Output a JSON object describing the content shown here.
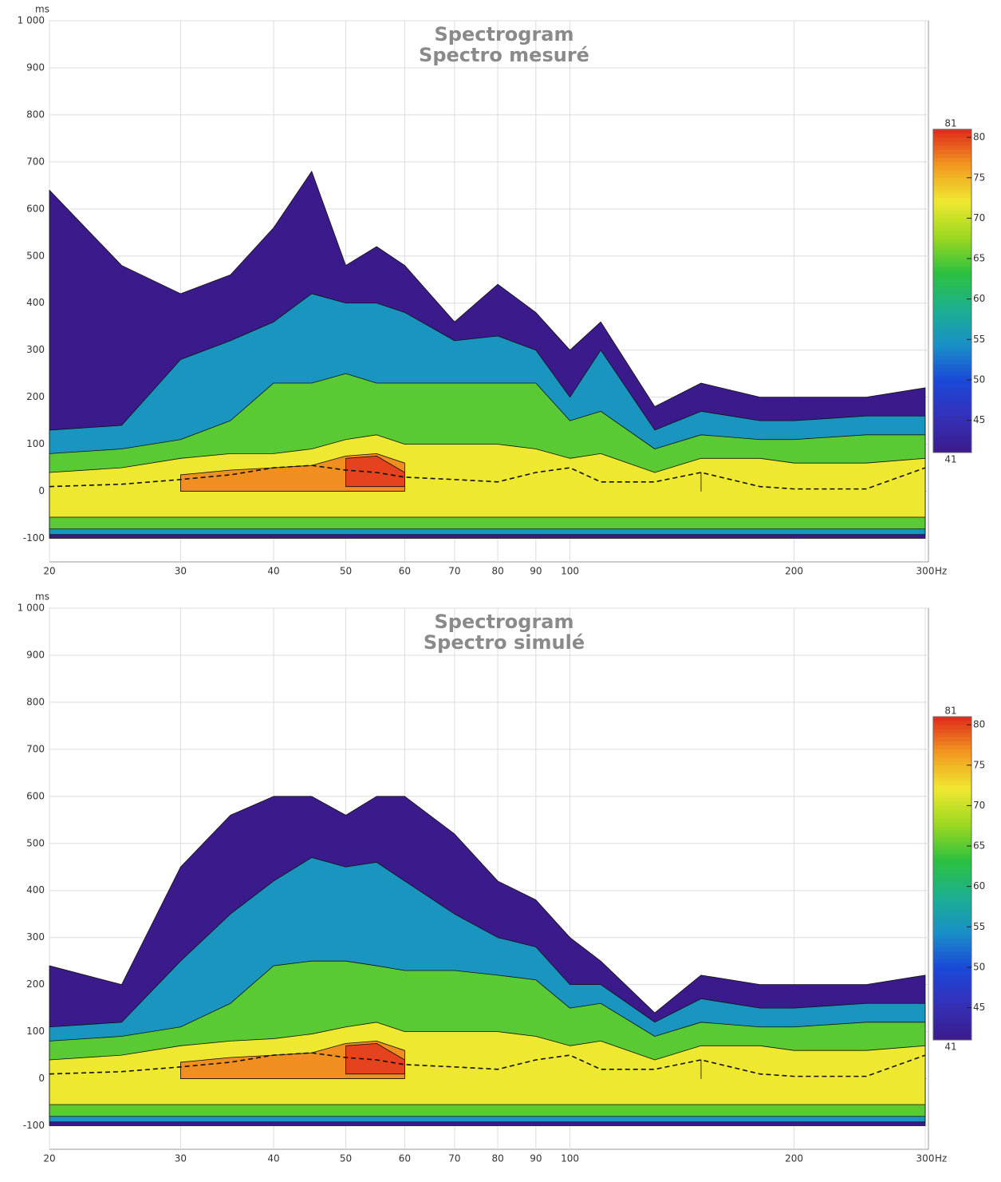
{
  "chart_data": [
    {
      "type": "spectrogram",
      "title": "Spectrogram",
      "subtitle": "Spectro mesuré",
      "x_label": "Hz",
      "y_label": "ms",
      "xscale": "log",
      "grid": true,
      "xlim": [
        20,
        300
      ],
      "xticks": [
        20,
        30,
        40,
        50,
        60,
        70,
        80,
        90,
        100,
        200,
        300
      ],
      "ylim": [
        -150,
        1000
      ],
      "yticks": [
        -100,
        0,
        100,
        200,
        300,
        400,
        500,
        600,
        700,
        800,
        900,
        {
          "value": 1000,
          "label": "1 000"
        }
      ],
      "clim": [
        41,
        81
      ],
      "cticks": [
        45,
        50,
        55,
        60,
        65,
        70,
        75,
        80
      ],
      "colors": [
        "#3b1a8c",
        "#3530b8",
        "#1a48d8",
        "#1a90c8",
        "#1cb090",
        "#2cc040",
        "#9cd820",
        "#f0e830",
        "#f29a20",
        "#e02a1c"
      ],
      "x": [
        20,
        25,
        30,
        35,
        40,
        45,
        50,
        55,
        60,
        70,
        80,
        90,
        100,
        110,
        130,
        150,
        180,
        200,
        250,
        300
      ],
      "contours": [
        {
          "level": 41,
          "bottom": -100,
          "upper": [
            640,
            480,
            420,
            460,
            560,
            680,
            480,
            520,
            480,
            360,
            440,
            380,
            300,
            360,
            180,
            230,
            200,
            200,
            200,
            220
          ]
        },
        {
          "level": 55,
          "bottom": -92,
          "upper": [
            130,
            140,
            280,
            320,
            360,
            420,
            400,
            400,
            380,
            320,
            330,
            300,
            200,
            300,
            130,
            170,
            150,
            150,
            160,
            160
          ]
        },
        {
          "level": 65,
          "bottom": -80,
          "upper": [
            80,
            90,
            110,
            150,
            230,
            230,
            250,
            230,
            230,
            230,
            230,
            230,
            150,
            170,
            90,
            120,
            110,
            110,
            120,
            120
          ]
        },
        {
          "level": 72,
          "bottom": -55,
          "upper": [
            40,
            50,
            70,
            80,
            80,
            90,
            110,
            120,
            100,
            100,
            100,
            90,
            70,
            80,
            40,
            70,
            70,
            60,
            60,
            70
          ]
        },
        {
          "level": 77,
          "bottom": 0,
          "upper": [
            null,
            null,
            35,
            45,
            50,
            55,
            75,
            80,
            60,
            null,
            null,
            null,
            null,
            null,
            null,
            40,
            null,
            null,
            null,
            null
          ]
        },
        {
          "level": 80,
          "bottom": 10,
          "upper": [
            null,
            null,
            null,
            null,
            null,
            null,
            70,
            75,
            40,
            null,
            null,
            null,
            null,
            null,
            null,
            null,
            null,
            null,
            null,
            null
          ]
        }
      ],
      "peak": [
        10,
        15,
        25,
        35,
        50,
        55,
        45,
        40,
        30,
        25,
        20,
        40,
        50,
        20,
        20,
        40,
        10,
        5,
        5,
        50
      ]
    },
    {
      "type": "spectrogram",
      "title": "Spectrogram",
      "subtitle": "Spectro simulé",
      "x_label": "Hz",
      "y_label": "ms",
      "xscale": "log",
      "grid": true,
      "xlim": [
        20,
        300
      ],
      "xticks": [
        20,
        30,
        40,
        50,
        60,
        70,
        80,
        90,
        100,
        200,
        300
      ],
      "ylim": [
        -150,
        1000
      ],
      "yticks": [
        -100,
        0,
        100,
        200,
        300,
        400,
        500,
        600,
        700,
        800,
        900,
        {
          "value": 1000,
          "label": "1 000"
        }
      ],
      "clim": [
        41,
        81
      ],
      "cticks": [
        45,
        50,
        55,
        60,
        65,
        70,
        75,
        80
      ],
      "colors": [
        "#3b1a8c",
        "#3530b8",
        "#1a48d8",
        "#1a90c8",
        "#1cb090",
        "#2cc040",
        "#9cd820",
        "#f0e830",
        "#f29a20",
        "#e02a1c"
      ],
      "x": [
        20,
        25,
        30,
        35,
        40,
        45,
        50,
        55,
        60,
        70,
        80,
        90,
        100,
        110,
        130,
        150,
        180,
        200,
        250,
        300
      ],
      "contours": [
        {
          "level": 41,
          "bottom": -100,
          "upper": [
            240,
            200,
            450,
            560,
            600,
            600,
            560,
            600,
            600,
            520,
            420,
            380,
            300,
            250,
            140,
            220,
            200,
            200,
            200,
            220
          ]
        },
        {
          "level": 55,
          "bottom": -92,
          "upper": [
            110,
            120,
            250,
            350,
            420,
            470,
            450,
            460,
            420,
            350,
            300,
            280,
            200,
            200,
            120,
            170,
            150,
            150,
            160,
            160
          ]
        },
        {
          "level": 65,
          "bottom": -80,
          "upper": [
            80,
            90,
            110,
            160,
            240,
            250,
            250,
            240,
            230,
            230,
            220,
            210,
            150,
            160,
            90,
            120,
            110,
            110,
            120,
            120
          ]
        },
        {
          "level": 72,
          "bottom": -55,
          "upper": [
            40,
            50,
            70,
            80,
            85,
            95,
            110,
            120,
            100,
            100,
            100,
            90,
            70,
            80,
            40,
            70,
            70,
            60,
            60,
            70
          ]
        },
        {
          "level": 77,
          "bottom": 0,
          "upper": [
            null,
            null,
            35,
            45,
            50,
            55,
            75,
            80,
            60,
            null,
            null,
            null,
            null,
            null,
            null,
            40,
            null,
            null,
            null,
            null
          ]
        },
        {
          "level": 80,
          "bottom": 10,
          "upper": [
            null,
            null,
            null,
            null,
            null,
            null,
            70,
            75,
            40,
            null,
            null,
            null,
            null,
            null,
            null,
            null,
            null,
            null,
            null,
            null
          ]
        }
      ],
      "peak": [
        10,
        15,
        25,
        35,
        50,
        55,
        45,
        40,
        30,
        25,
        20,
        40,
        50,
        20,
        20,
        40,
        10,
        5,
        5,
        50
      ]
    }
  ]
}
